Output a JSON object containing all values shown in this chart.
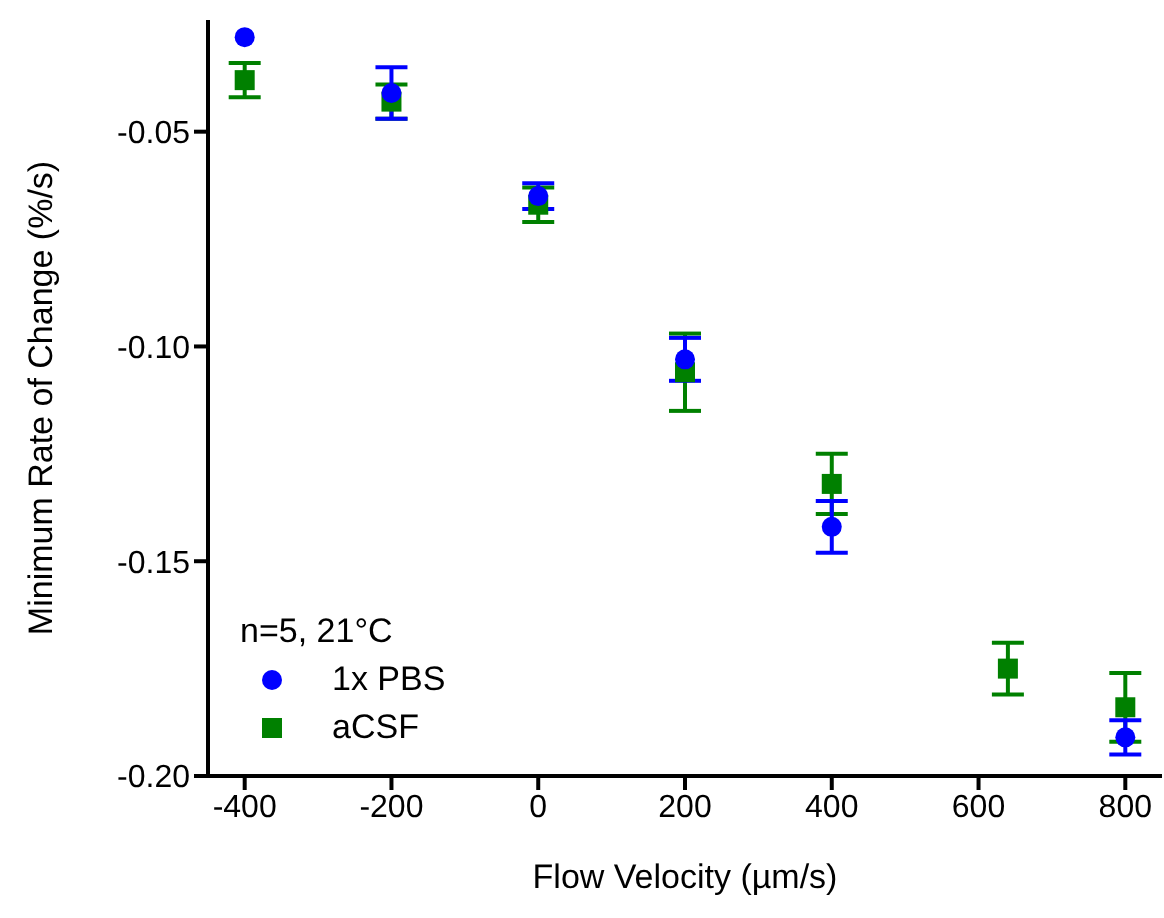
{
  "chart_data": {
    "type": "scatter",
    "xlabel": "Flow Velocity (µm/s)",
    "ylabel": "Minimum Rate of Change (%/s)",
    "legend_title": "n=5, 21°C",
    "legend": "bottom left",
    "xlim": [
      -450,
      850
    ],
    "xticks": [
      -400,
      -200,
      0,
      200,
      400,
      600,
      800
    ],
    "ylim": [
      -0.2,
      -0.024
    ],
    "yticks": [
      {
        "value": -0.05,
        "label": "-0.05"
      },
      {
        "value": -0.1,
        "label": "-0.10"
      },
      {
        "value": -0.15,
        "label": "-0.15"
      },
      {
        "value": -0.2,
        "label": "-0.20"
      }
    ],
    "series": [
      {
        "name": "1x PBS",
        "color": "#0000ff",
        "marker": "circle",
        "x": [
          -400,
          -200,
          0,
          200,
          400,
          800
        ],
        "values": [
          -0.028,
          -0.041,
          -0.065,
          -0.103,
          -0.142,
          -0.191
        ],
        "errors": [
          null,
          0.006,
          0.003,
          0.005,
          0.006,
          0.004
        ]
      },
      {
        "name": "aCSF",
        "color": "#008000",
        "marker": "square",
        "x": [
          -400,
          -200,
          0,
          200,
          400,
          640,
          800
        ],
        "values": [
          -0.038,
          -0.043,
          -0.067,
          -0.106,
          -0.132,
          -0.175,
          -0.184
        ],
        "errors": [
          0.004,
          0.004,
          0.004,
          0.009,
          0.007,
          0.006,
          0.008
        ]
      }
    ]
  }
}
